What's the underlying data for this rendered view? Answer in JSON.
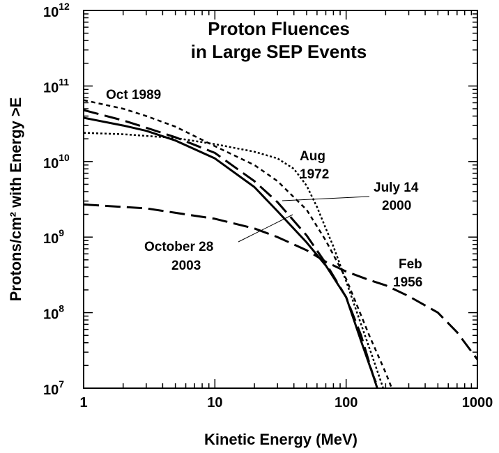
{
  "chart_data": {
    "type": "line",
    "title": [
      "Proton Fluences",
      "in Large SEP Events"
    ],
    "xlabel": "Kinetic Energy (MeV)",
    "ylabel": "Protons/cm² with Energy >E",
    "xscale": "log",
    "yscale": "log",
    "xlim": [
      1,
      1000
    ],
    "ylim": [
      10000000.0,
      1000000000000.0
    ],
    "grid": false,
    "legend": "none",
    "x_tick_labels": [
      "1",
      "10",
      "100",
      "1000"
    ],
    "y_tick_labels": [
      {
        "base": "10",
        "exp": "7"
      },
      {
        "base": "10",
        "exp": "8"
      },
      {
        "base": "10",
        "exp": "9"
      },
      {
        "base": "10",
        "exp": "10"
      },
      {
        "base": "10",
        "exp": "11"
      },
      {
        "base": "10",
        "exp": "12"
      }
    ],
    "series": [
      {
        "name": "Oct 1989",
        "style": "short-dash",
        "x": [
          1,
          2,
          3,
          5,
          10,
          20,
          30,
          50,
          70,
          100,
          150,
          200,
          250
        ],
        "y": [
          65000000000.0,
          50000000000.0,
          40000000000.0,
          29000000000.0,
          16000000000.0,
          9000000000.0,
          5500000000.0,
          2300000000.0,
          900000000.0,
          280000000.0,
          50000000.0,
          16000000.0,
          6000000.0
        ]
      },
      {
        "name": "Aug 1972",
        "style": "dotted",
        "x": [
          1,
          2,
          5,
          10,
          20,
          30,
          40,
          50,
          60,
          70,
          80,
          100,
          130,
          160,
          200
        ],
        "y": [
          24000000000.0,
          23000000000.0,
          20500000000.0,
          17000000000.0,
          13500000000.0,
          11000000000.0,
          8000000000.0,
          4800000000.0,
          2500000000.0,
          1300000000.0,
          750000000.0,
          260000000.0,
          70000000.0,
          25000000.0,
          8000000.0
        ]
      },
      {
        "name": "July 14 2000",
        "style": "long-dash",
        "x": [
          1,
          2,
          3,
          5,
          10,
          20,
          30,
          50,
          70,
          100,
          130,
          160,
          180,
          200
        ],
        "y": [
          48000000000.0,
          35000000000.0,
          28000000000.0,
          21000000000.0,
          13000000000.0,
          5500000000.0,
          2900000000.0,
          1050000000.0,
          450000000.0,
          160000000.0,
          50000000.0,
          15000000.0,
          9000000.0,
          6000000.0
        ]
      },
      {
        "name": "October 28 2003",
        "style": "solid",
        "x": [
          1,
          2,
          3,
          5,
          10,
          20,
          30,
          50,
          70,
          100,
          130,
          160,
          180,
          200
        ],
        "y": [
          38000000000.0,
          30000000000.0,
          25500000000.0,
          19000000000.0,
          11000000000.0,
          4600000000.0,
          2200000000.0,
          850000000.0,
          420000000.0,
          160000000.0,
          42000000.0,
          15000000.0,
          8000000.0,
          5500000.0
        ]
      },
      {
        "name": "Feb 1956",
        "style": "long-dash",
        "x": [
          1,
          3,
          10,
          20,
          30,
          50,
          70,
          100,
          150,
          200,
          300,
          500,
          700,
          1000
        ],
        "y": [
          2700000000.0,
          2400000000.0,
          1750000000.0,
          1300000000.0,
          1000000000.0,
          670000000.0,
          470000000.0,
          350000000.0,
          270000000.0,
          230000000.0,
          165000000.0,
          100000000.0,
          55000000.0,
          24000000.0
        ]
      }
    ],
    "annotations": {
      "oct1989": "Oct 1989",
      "aug1972_a": "Aug",
      "aug1972_b": "1972",
      "july2000_a": "July 14",
      "july2000_b": "2000",
      "oct2003_a": "October 28",
      "oct2003_b": "2003",
      "feb1956_a": "Feb",
      "feb1956_b": "1956"
    }
  }
}
